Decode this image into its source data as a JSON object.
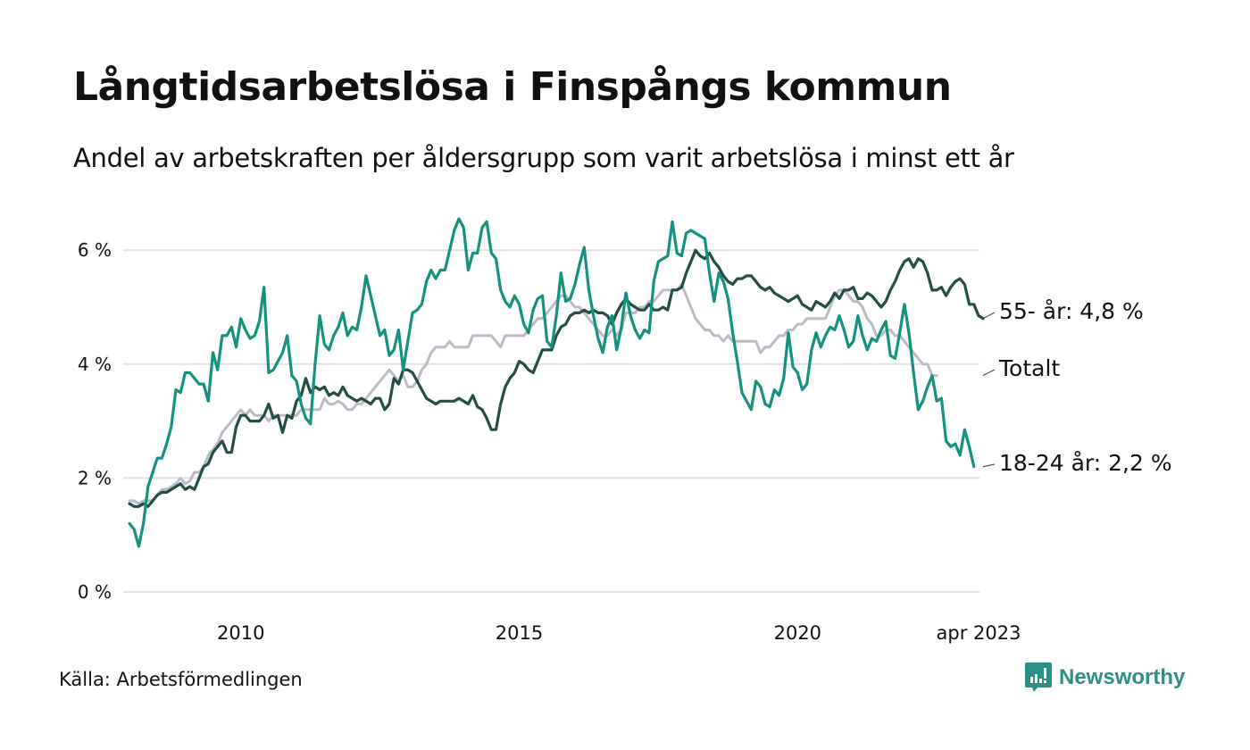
{
  "header": {
    "title": "Långtidsarbetslösa i Finspångs kommun",
    "subtitle": "Andel av arbetskraften per åldersgrupp som varit arbetslösa i minst ett år"
  },
  "footer": {
    "source": "Källa: Arbetsförmedlingen",
    "brand": "Newsworthy",
    "brand_icon": "bar-chart-speech-bubble-icon"
  },
  "colors": {
    "youth": "#14917f",
    "senior": "#234d45",
    "total": "#bdbac8",
    "grid": "#e2e1e6",
    "brand": "#2a8f84"
  },
  "chart_data": {
    "type": "line",
    "title": "Långtidsarbetslösa i Finspångs kommun",
    "subtitle": "Andel av arbetskraften per åldersgrupp som varit arbetslösa i minst ett år",
    "xlabel": "",
    "ylabel": "",
    "x_start": "2008-01",
    "x_end": "2023-04",
    "x_frequency": "monthly",
    "x_ticks": [
      {
        "label": "2010",
        "date": "2010-01"
      },
      {
        "label": "2015",
        "date": "2015-01"
      },
      {
        "label": "2020",
        "date": "2020-01"
      },
      {
        "label": "apr 2023",
        "date": "2023-04"
      }
    ],
    "y_ticks": [
      {
        "label": "0 %",
        "value": 0
      },
      {
        "label": "2 %",
        "value": 2
      },
      {
        "label": "4 %",
        "value": 4
      },
      {
        "label": "6 %",
        "value": 6
      }
    ],
    "ylim": [
      0,
      6.8
    ],
    "grid": true,
    "legend": "end-labels-right",
    "series": [
      {
        "name": "Totalt",
        "end_label": "Totalt",
        "color_key": "total",
        "values": [
          1.6,
          1.6,
          1.55,
          1.6,
          1.6,
          1.6,
          1.7,
          1.8,
          1.8,
          1.85,
          1.9,
          2.0,
          1.9,
          1.95,
          2.1,
          2.1,
          2.2,
          2.4,
          2.5,
          2.6,
          2.8,
          2.9,
          3.0,
          3.1,
          3.2,
          3.1,
          3.2,
          3.1,
          3.1,
          3.1,
          3.0,
          3.1,
          3.1,
          3.1,
          3.1,
          3.1,
          3.1,
          3.2,
          3.2,
          3.2,
          3.2,
          3.2,
          3.4,
          3.3,
          3.3,
          3.35,
          3.3,
          3.2,
          3.2,
          3.3,
          3.3,
          3.4,
          3.5,
          3.6,
          3.7,
          3.8,
          3.9,
          3.8,
          3.7,
          3.8,
          3.6,
          3.6,
          3.7,
          3.9,
          4.0,
          4.2,
          4.3,
          4.3,
          4.3,
          4.4,
          4.3,
          4.3,
          4.3,
          4.3,
          4.5,
          4.5,
          4.5,
          4.5,
          4.5,
          4.4,
          4.3,
          4.5,
          4.5,
          4.5,
          4.5,
          4.5,
          4.6,
          4.7,
          4.8,
          4.8,
          4.9,
          5.0,
          5.1,
          5.2,
          5.2,
          5.1,
          5.0,
          5.0,
          4.9,
          4.8,
          4.7,
          4.6,
          4.5,
          4.5,
          4.6,
          4.5,
          4.6,
          4.9,
          4.9,
          4.9,
          5.0,
          5.0,
          5.1,
          5.1,
          5.2,
          5.3,
          5.3,
          5.3,
          5.3,
          5.4,
          5.2,
          5.0,
          4.8,
          4.7,
          4.6,
          4.6,
          4.5,
          4.5,
          4.4,
          4.5,
          4.4,
          4.4,
          4.4,
          4.4,
          4.4,
          4.4,
          4.2,
          4.3,
          4.3,
          4.4,
          4.5,
          4.5,
          4.6,
          4.6,
          4.7,
          4.7,
          4.8,
          4.8,
          4.8,
          4.8,
          4.8,
          5.0,
          5.2,
          5.3,
          5.3,
          5.2,
          5.1,
          5.1,
          5.0,
          4.8,
          4.7,
          4.5,
          4.5,
          4.6,
          4.6,
          4.5,
          4.5,
          4.4,
          4.3,
          4.2,
          4.1,
          4.0,
          4.0,
          3.8,
          3.8
        ]
      },
      {
        "name": "55- år",
        "end_label": "55- år: 4,8 %",
        "last_value": 4.8,
        "color_key": "senior",
        "values": [
          1.55,
          1.5,
          1.5,
          1.55,
          1.5,
          1.6,
          1.7,
          1.75,
          1.75,
          1.8,
          1.85,
          1.9,
          1.8,
          1.85,
          1.8,
          2.0,
          2.2,
          2.25,
          2.45,
          2.55,
          2.65,
          2.45,
          2.45,
          2.9,
          3.1,
          3.1,
          3.0,
          3.0,
          3.0,
          3.1,
          3.3,
          3.05,
          3.1,
          2.8,
          3.1,
          3.05,
          3.35,
          3.45,
          3.75,
          3.5,
          3.6,
          3.55,
          3.6,
          3.45,
          3.5,
          3.45,
          3.6,
          3.45,
          3.4,
          3.35,
          3.4,
          3.35,
          3.3,
          3.4,
          3.4,
          3.2,
          3.3,
          3.75,
          3.65,
          3.9,
          3.9,
          3.85,
          3.7,
          3.55,
          3.4,
          3.35,
          3.3,
          3.35,
          3.35,
          3.35,
          3.35,
          3.4,
          3.35,
          3.3,
          3.45,
          3.25,
          3.2,
          3.05,
          2.85,
          2.85,
          3.3,
          3.6,
          3.75,
          3.85,
          4.05,
          4.0,
          3.9,
          3.85,
          4.05,
          4.25,
          4.25,
          4.25,
          4.5,
          4.65,
          4.7,
          4.85,
          4.9,
          4.9,
          4.95,
          4.9,
          4.95,
          4.9,
          4.9,
          4.85,
          4.7,
          4.9,
          5.05,
          5.15,
          5.05,
          5.0,
          4.95,
          4.95,
          5.05,
          4.95,
          4.95,
          5.0,
          4.95,
          5.3,
          5.3,
          5.35,
          5.6,
          5.8,
          6.0,
          5.9,
          5.85,
          5.95,
          5.8,
          5.7,
          5.55,
          5.45,
          5.4,
          5.5,
          5.5,
          5.55,
          5.55,
          5.45,
          5.35,
          5.3,
          5.35,
          5.25,
          5.2,
          5.15,
          5.1,
          5.15,
          5.2,
          5.05,
          5.0,
          4.95,
          5.1,
          5.05,
          5.0,
          5.1,
          5.25,
          5.15,
          5.3,
          5.3,
          5.35,
          5.15,
          5.15,
          5.25,
          5.2,
          5.1,
          5.0,
          5.1,
          5.3,
          5.45,
          5.65,
          5.8,
          5.85,
          5.7,
          5.85,
          5.8,
          5.6,
          5.3,
          5.3,
          5.35,
          5.2,
          5.35,
          5.45,
          5.5,
          5.4,
          5.05,
          5.05,
          4.85,
          4.8
        ]
      },
      {
        "name": "18-24 år",
        "end_label": "18-24 år: 2,2 %",
        "last_value": 2.2,
        "color_key": "youth",
        "values": [
          1.2,
          1.1,
          0.8,
          1.2,
          1.85,
          2.1,
          2.35,
          2.35,
          2.6,
          2.9,
          3.55,
          3.5,
          3.85,
          3.85,
          3.75,
          3.65,
          3.65,
          3.35,
          4.2,
          3.9,
          4.5,
          4.5,
          4.65,
          4.3,
          4.8,
          4.6,
          4.45,
          4.5,
          4.75,
          5.35,
          3.85,
          3.9,
          4.05,
          4.2,
          4.5,
          3.8,
          3.7,
          3.3,
          3.05,
          2.95,
          4.0,
          4.85,
          4.35,
          4.25,
          4.5,
          4.65,
          4.9,
          4.5,
          4.65,
          4.6,
          5.0,
          5.55,
          5.2,
          4.85,
          4.5,
          4.6,
          4.15,
          4.25,
          4.6,
          3.9,
          4.4,
          4.9,
          4.95,
          5.05,
          5.45,
          5.65,
          5.5,
          5.65,
          5.65,
          6.0,
          6.35,
          6.55,
          6.4,
          5.65,
          5.95,
          5.95,
          6.4,
          6.5,
          5.95,
          5.85,
          5.3,
          5.1,
          5.0,
          5.2,
          5.05,
          4.7,
          4.55,
          4.95,
          5.15,
          5.2,
          4.4,
          4.3,
          4.85,
          5.6,
          5.1,
          5.15,
          5.4,
          5.75,
          6.05,
          5.3,
          4.85,
          4.45,
          4.2,
          4.65,
          4.85,
          4.25,
          4.65,
          5.25,
          4.85,
          4.6,
          4.45,
          4.6,
          4.55,
          5.45,
          5.8,
          5.85,
          5.9,
          6.5,
          5.95,
          5.9,
          6.3,
          6.35,
          6.3,
          6.25,
          6.2,
          5.6,
          5.1,
          5.6,
          5.45,
          5.15,
          4.55,
          4.05,
          3.5,
          3.35,
          3.2,
          3.7,
          3.6,
          3.3,
          3.25,
          3.55,
          3.45,
          3.75,
          4.55,
          3.95,
          3.85,
          3.55,
          3.65,
          4.25,
          4.55,
          4.3,
          4.5,
          4.65,
          4.6,
          4.85,
          4.6,
          4.3,
          4.4,
          4.85,
          4.5,
          4.25,
          4.45,
          4.4,
          4.6,
          4.75,
          4.15,
          4.1,
          4.55,
          5.05,
          4.55,
          3.85,
          3.2,
          3.35,
          3.6,
          3.8,
          3.35,
          3.4,
          2.65,
          2.55,
          2.6,
          2.4,
          2.85,
          2.55,
          2.2
        ]
      }
    ]
  }
}
